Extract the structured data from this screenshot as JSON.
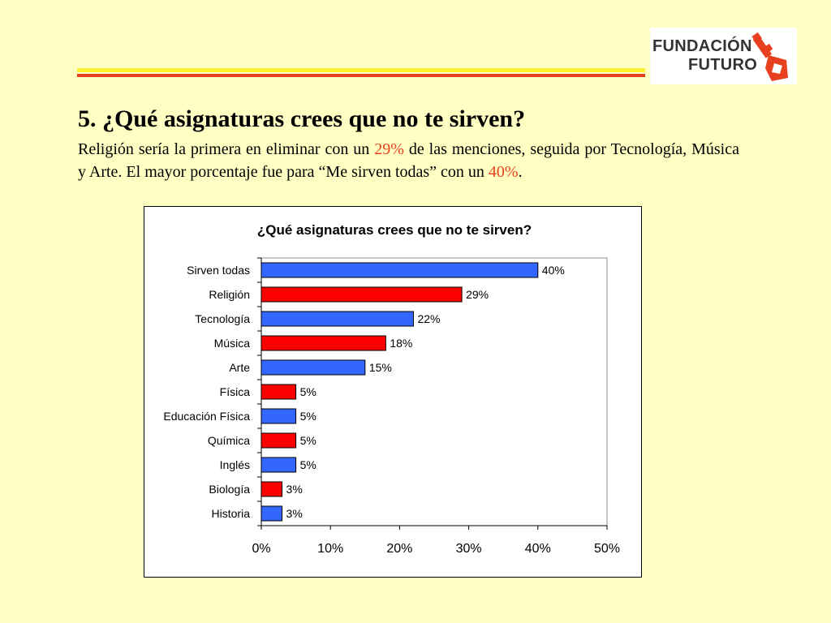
{
  "heading": {
    "title": "5. ¿Qué asignaturas crees que no te sirven?",
    "body_part1": "Religión sería la primera en eliminar con un ",
    "body_hl1": "29%",
    "body_part2": " de las menciones, seguida por Tecnología, Música y Arte. El mayor porcentaje fue para “Me sirven todas” con un ",
    "body_hl2": "40%",
    "body_part3": "."
  },
  "logo": {
    "line1": "FUNDACIÓN",
    "line2": "FUTURO",
    "key_color": "#E8401F"
  },
  "colors": {
    "background": "#FFFFC4",
    "stripe_yellow": "#FFEF33",
    "stripe_red": "#E8401F"
  },
  "chart_data": {
    "type": "bar",
    "orientation": "horizontal",
    "title": "¿Qué asignaturas crees que no te sirven?",
    "categories": [
      "Sirven todas",
      "Religión",
      "Tecnología",
      "Música",
      "Arte",
      "Física",
      "Educación Física",
      "Química",
      "Inglés",
      "Biología",
      "Historia"
    ],
    "values": [
      40,
      29,
      22,
      18,
      15,
      5,
      5,
      5,
      5,
      3,
      3
    ],
    "value_labels": [
      "40%",
      "29%",
      "22%",
      "18%",
      "15%",
      "5%",
      "5%",
      "5%",
      "5%",
      "3%",
      "3%"
    ],
    "bar_colors": [
      "#3366FF",
      "#FF0000",
      "#3366FF",
      "#FF0000",
      "#3366FF",
      "#FF0000",
      "#3366FF",
      "#FF0000",
      "#3366FF",
      "#FF0000",
      "#3366FF"
    ],
    "xlim": [
      0,
      50
    ],
    "xticks": [
      0,
      10,
      20,
      30,
      40,
      50
    ],
    "xtick_labels": [
      "0%",
      "10%",
      "20%",
      "30%",
      "40%",
      "50%"
    ],
    "grid": false,
    "legend": "none"
  }
}
